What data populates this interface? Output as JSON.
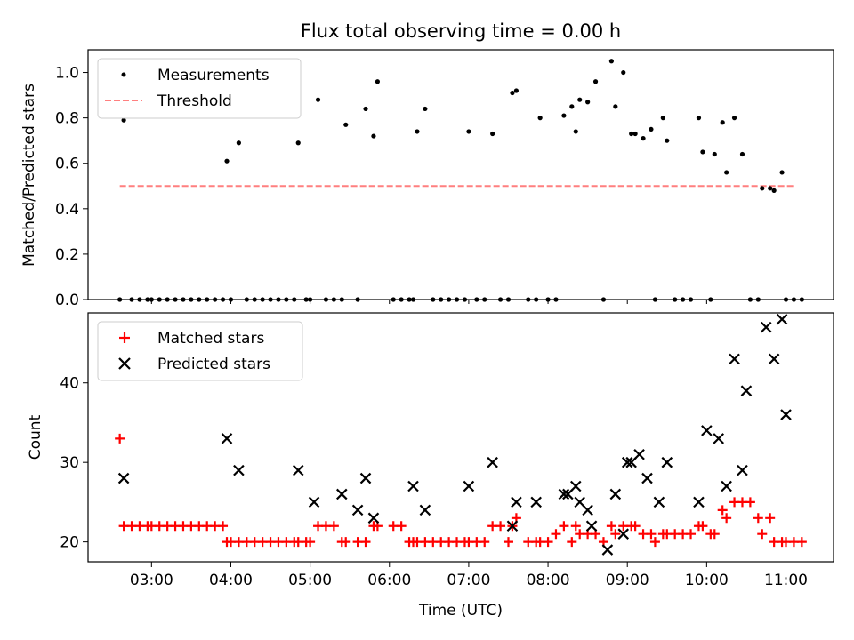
{
  "chart_data": [
    {
      "type": "scatter",
      "title": "Flux total observing time = 0.00 h",
      "xlabel": "",
      "ylabel": "Matched/Predicted stars",
      "ylim": [
        0,
        1.1
      ],
      "xlim": [
        2.2,
        11.6
      ],
      "yticks": [
        0.0,
        0.2,
        0.4,
        0.6,
        0.8,
        1.0
      ],
      "ytick_labels": [
        "0.0",
        "0.2",
        "0.4",
        "0.6",
        "0.8",
        "1.0"
      ],
      "legend_position": "top-left",
      "series": [
        {
          "name": "Measurements",
          "color": "#000000",
          "marker": "dot",
          "x": [
            2.6,
            2.65,
            2.75,
            2.85,
            2.95,
            3.0,
            3.1,
            3.2,
            3.3,
            3.4,
            3.5,
            3.6,
            3.7,
            3.8,
            3.9,
            3.95,
            4.0,
            4.1,
            4.2,
            4.3,
            4.4,
            4.5,
            4.6,
            4.7,
            4.8,
            4.85,
            4.95,
            5.0,
            5.1,
            5.2,
            5.3,
            5.4,
            5.45,
            5.6,
            5.7,
            5.8,
            5.85,
            6.05,
            6.15,
            6.25,
            6.3,
            6.35,
            6.45,
            6.55,
            6.65,
            6.75,
            6.85,
            6.95,
            7.0,
            7.1,
            7.2,
            7.3,
            7.4,
            7.5,
            7.55,
            7.6,
            7.75,
            7.85,
            7.9,
            8.0,
            8.1,
            8.2,
            8.3,
            8.35,
            8.4,
            8.5,
            8.6,
            8.7,
            8.8,
            8.85,
            8.95,
            9.05,
            9.1,
            9.2,
            9.3,
            9.35,
            9.45,
            9.5,
            9.6,
            9.7,
            9.8,
            9.9,
            9.95,
            10.05,
            10.1,
            10.2,
            10.25,
            10.35,
            10.45,
            10.55,
            10.65,
            10.7,
            10.8,
            10.85,
            10.95,
            11.0,
            11.1,
            11.2
          ],
          "y": [
            0,
            0.79,
            0,
            0,
            0,
            0,
            0,
            0,
            0,
            0,
            0,
            0,
            0,
            0,
            0,
            0.61,
            0,
            0.69,
            0,
            0,
            0,
            0,
            0,
            0,
            0,
            0.69,
            0,
            0,
            0.88,
            0,
            0,
            0,
            0.77,
            0,
            0.84,
            0.72,
            0.96,
            0,
            0,
            0,
            0,
            0.74,
            0.84,
            0,
            0,
            0,
            0,
            0,
            0.74,
            0,
            0,
            0.73,
            0,
            0,
            0.91,
            0.92,
            0,
            0,
            0.8,
            0,
            0,
            0.81,
            0.85,
            0.74,
            0.88,
            0.87,
            0.96,
            0,
            1.05,
            0.85,
            1.0,
            0.73,
            0.73,
            0.71,
            0.75,
            0,
            0.8,
            0.7,
            0,
            0,
            0,
            0.8,
            0.65,
            0,
            0.64,
            0.78,
            0.56,
            0.8,
            0.64,
            0,
            0,
            0.49,
            0.49,
            0.48,
            0.56,
            0,
            0,
            0
          ]
        },
        {
          "name": "Threshold",
          "color": "#ff7f7f",
          "marker": "dashed-line",
          "x": [
            2.6,
            11.1
          ],
          "y": [
            0.5,
            0.5
          ]
        }
      ]
    },
    {
      "type": "scatter",
      "title": "",
      "xlabel": "Time (UTC)",
      "ylabel": "Count",
      "xlim": [
        2.2,
        11.6
      ],
      "ylim": [
        17.5,
        48.8
      ],
      "xticks": [
        3,
        4,
        5,
        6,
        7,
        8,
        9,
        10,
        11
      ],
      "xtick_labels": [
        "03:00",
        "04:00",
        "05:00",
        "06:00",
        "07:00",
        "08:00",
        "09:00",
        "10:00",
        "11:00"
      ],
      "yticks": [
        20,
        30,
        40
      ],
      "ytick_labels": [
        "20",
        "30",
        "40"
      ],
      "legend_position": "top-left",
      "series": [
        {
          "name": "Matched stars",
          "color": "#ff0000",
          "marker": "plus",
          "x": [
            2.6,
            2.65,
            2.75,
            2.85,
            2.95,
            3.0,
            3.1,
            3.2,
            3.3,
            3.4,
            3.5,
            3.6,
            3.7,
            3.8,
            3.9,
            3.95,
            4.0,
            4.1,
            4.2,
            4.3,
            4.4,
            4.5,
            4.6,
            4.7,
            4.8,
            4.85,
            4.95,
            5.0,
            5.1,
            5.2,
            5.3,
            5.4,
            5.45,
            5.6,
            5.7,
            5.8,
            5.85,
            6.05,
            6.15,
            6.25,
            6.3,
            6.35,
            6.45,
            6.55,
            6.65,
            6.75,
            6.85,
            6.95,
            7.0,
            7.1,
            7.2,
            7.3,
            7.4,
            7.5,
            7.55,
            7.6,
            7.75,
            7.85,
            7.9,
            8.0,
            8.1,
            8.2,
            8.3,
            8.35,
            8.4,
            8.5,
            8.6,
            8.7,
            8.8,
            8.85,
            8.95,
            9.05,
            9.1,
            9.2,
            9.3,
            9.35,
            9.45,
            9.5,
            9.6,
            9.7,
            9.8,
            9.9,
            9.95,
            10.05,
            10.1,
            10.2,
            10.25,
            10.35,
            10.45,
            10.55,
            10.65,
            10.7,
            10.8,
            10.85,
            10.95,
            11.0,
            11.1,
            11.2
          ],
          "y": [
            33,
            22,
            22,
            22,
            22,
            22,
            22,
            22,
            22,
            22,
            22,
            22,
            22,
            22,
            22,
            20,
            20,
            20,
            20,
            20,
            20,
            20,
            20,
            20,
            20,
            20,
            20,
            20,
            22,
            22,
            22,
            20,
            20,
            20,
            20,
            22,
            22,
            22,
            22,
            20,
            20,
            20,
            20,
            20,
            20,
            20,
            20,
            20,
            20,
            20,
            20,
            22,
            22,
            20,
            22,
            23,
            20,
            20,
            20,
            20,
            21,
            22,
            20,
            22,
            21,
            21,
            21,
            20,
            22,
            21,
            22,
            22,
            22,
            21,
            21,
            20,
            21,
            21,
            21,
            21,
            21,
            22,
            22,
            21,
            21,
            24,
            23,
            25,
            25,
            25,
            23,
            21,
            23,
            20,
            20,
            20,
            20,
            20
          ]
        },
        {
          "name": "Predicted stars",
          "color": "#000000",
          "marker": "x",
          "x": [
            2.65,
            3.95,
            4.1,
            4.85,
            5.05,
            5.4,
            5.6,
            5.7,
            5.8,
            6.3,
            6.45,
            7.0,
            7.3,
            7.55,
            7.6,
            7.85,
            8.2,
            8.25,
            8.35,
            8.4,
            8.5,
            8.55,
            8.75,
            8.85,
            8.95,
            9.0,
            9.05,
            9.15,
            9.25,
            9.4,
            9.5,
            9.9,
            10.0,
            10.15,
            10.25,
            10.35,
            10.45,
            10.5,
            10.75,
            10.85,
            10.95,
            11.0
          ],
          "y": [
            28,
            33,
            29,
            29,
            25,
            26,
            24,
            28,
            23,
            27,
            24,
            27,
            30,
            22,
            25,
            25,
            26,
            26,
            27,
            25,
            24,
            22,
            19,
            26,
            21,
            30,
            30,
            31,
            28,
            25,
            30,
            25,
            34,
            33,
            27,
            43,
            29,
            39,
            47,
            43,
            48,
            36
          ]
        }
      ]
    }
  ]
}
